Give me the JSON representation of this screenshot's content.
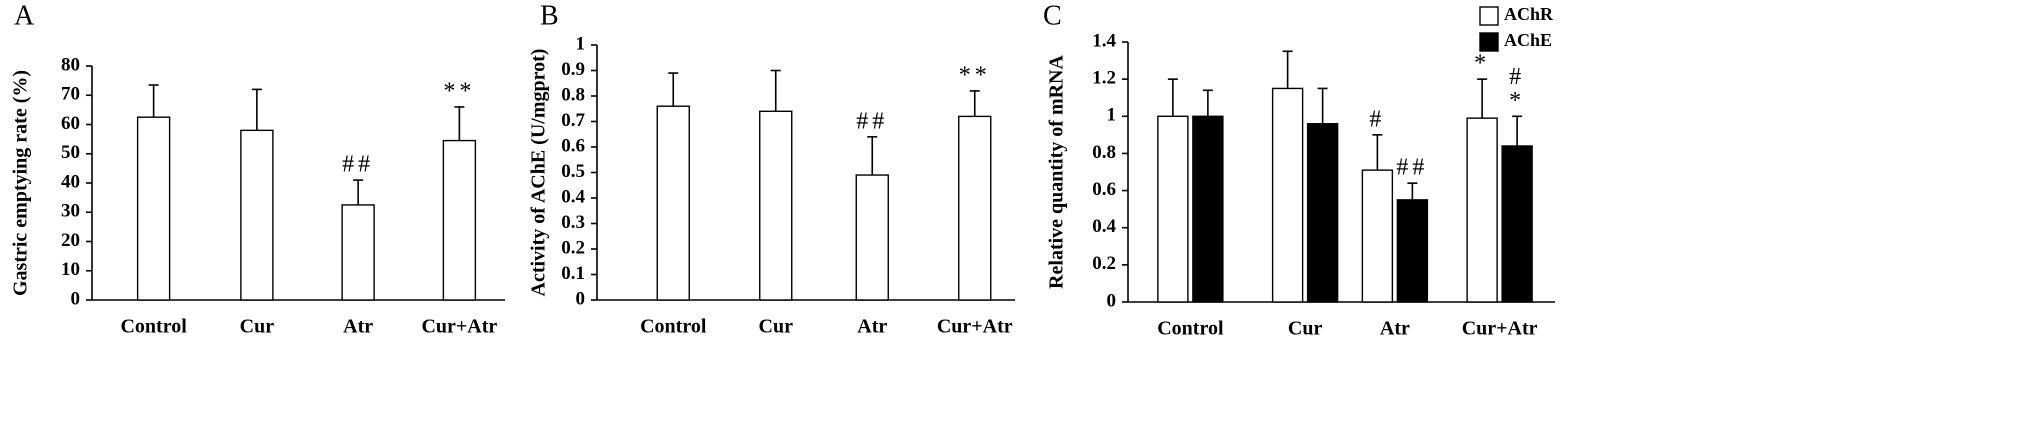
{
  "chart_data": [
    {
      "type": "bar",
      "panel": "A",
      "y_label": "Gastric emptying rate  (%)",
      "categories": [
        "Control",
        "Cur",
        "Atr",
        "Cur+Atr"
      ],
      "values": [
        62.5,
        58,
        32.5,
        54.5
      ],
      "errors": [
        11,
        14,
        8.5,
        11.5
      ],
      "annotations": [
        [],
        [],
        [
          "##"
        ],
        [
          "**"
        ]
      ],
      "color": "#ffffff",
      "ylim": [
        0,
        80
      ],
      "yticks": [
        0,
        10,
        20,
        30,
        40,
        50,
        60,
        70,
        80
      ]
    },
    {
      "type": "bar",
      "panel": "B",
      "y_label": "Activity of AChE (U/mgprot)",
      "categories": [
        "Control",
        "Cur",
        "Atr",
        "Cur+Atr"
      ],
      "values": [
        0.76,
        0.74,
        0.49,
        0.72
      ],
      "errors": [
        0.13,
        0.16,
        0.15,
        0.1
      ],
      "annotations": [
        [],
        [],
        [
          "##"
        ],
        [
          "**"
        ]
      ],
      "color": "#ffffff",
      "ylim": [
        0,
        1
      ],
      "yticks": [
        0,
        0.1,
        0.2,
        0.3,
        0.4,
        0.5,
        0.6,
        0.7,
        0.8,
        0.9,
        1
      ]
    },
    {
      "type": "bar",
      "panel": "C",
      "y_label": "Relative quantity of mRNA",
      "categories": [
        "Control",
        "Cur",
        "Atr",
        "Cur+Atr"
      ],
      "series": [
        {
          "name": "AChR",
          "color": "#ffffff",
          "values": [
            1.0,
            1.15,
            0.71,
            0.99
          ],
          "errors": [
            0.2,
            0.2,
            0.19,
            0.21
          ],
          "annotations": [
            [],
            [],
            [
              "#"
            ],
            [
              "*"
            ]
          ]
        },
        {
          "name": "AChE",
          "color": "#000000",
          "values": [
            1.0,
            0.96,
            0.55,
            0.84
          ],
          "errors": [
            0.14,
            0.19,
            0.09,
            0.16
          ],
          "annotations": [
            [],
            [],
            [
              "##"
            ],
            [
              "#",
              "*"
            ]
          ]
        }
      ],
      "ylim": [
        0,
        1.4
      ],
      "yticks": [
        0,
        0.2,
        0.4,
        0.6,
        0.8,
        1,
        1.2,
        1.4
      ]
    }
  ]
}
